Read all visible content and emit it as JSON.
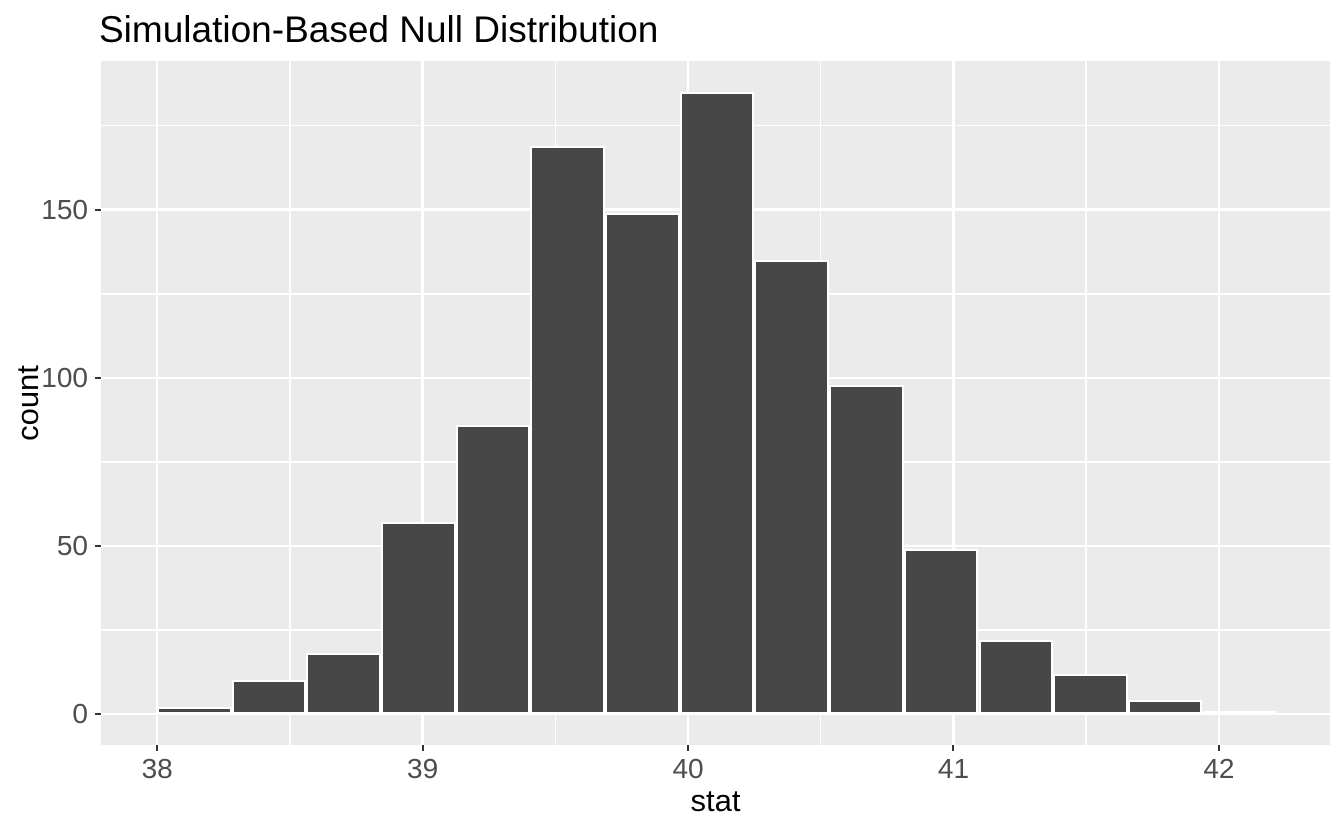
{
  "chart_data": {
    "type": "bar",
    "subtype": "histogram",
    "title": "Simulation-Based Null Distribution",
    "xlabel": "stat",
    "ylabel": "count",
    "x_tick_values": [
      38,
      39,
      40,
      41,
      42
    ],
    "x_tick_labels": [
      "38",
      "39",
      "40",
      "41",
      "42"
    ],
    "x_minor_gridlines": [
      38.5,
      39.5,
      40.5,
      41.5
    ],
    "y_tick_values": [
      0,
      50,
      100,
      150
    ],
    "y_tick_labels": [
      "0",
      "50",
      "100",
      "150"
    ],
    "y_minor_gridlines": [
      25,
      75,
      125,
      175
    ],
    "xlim": [
      37.7885,
      42.4185
    ],
    "ylim": [
      -9.25,
      194.25
    ],
    "grid": "on",
    "legend": "none",
    "bins": {
      "start": 38.0,
      "width": 0.2813
    },
    "counts": [
      2,
      10,
      18,
      57,
      86,
      169,
      149,
      185,
      135,
      98,
      49,
      22,
      12,
      4,
      1
    ],
    "colors": {
      "bar_fill": "#474747",
      "bar_stroke": "#FFFFFF",
      "panel_background": "#EBEBEB",
      "gridline": "#FFFFFF",
      "tick_label": "#4D4D4D",
      "tick_mark": "#333333",
      "text": "#000000"
    }
  }
}
